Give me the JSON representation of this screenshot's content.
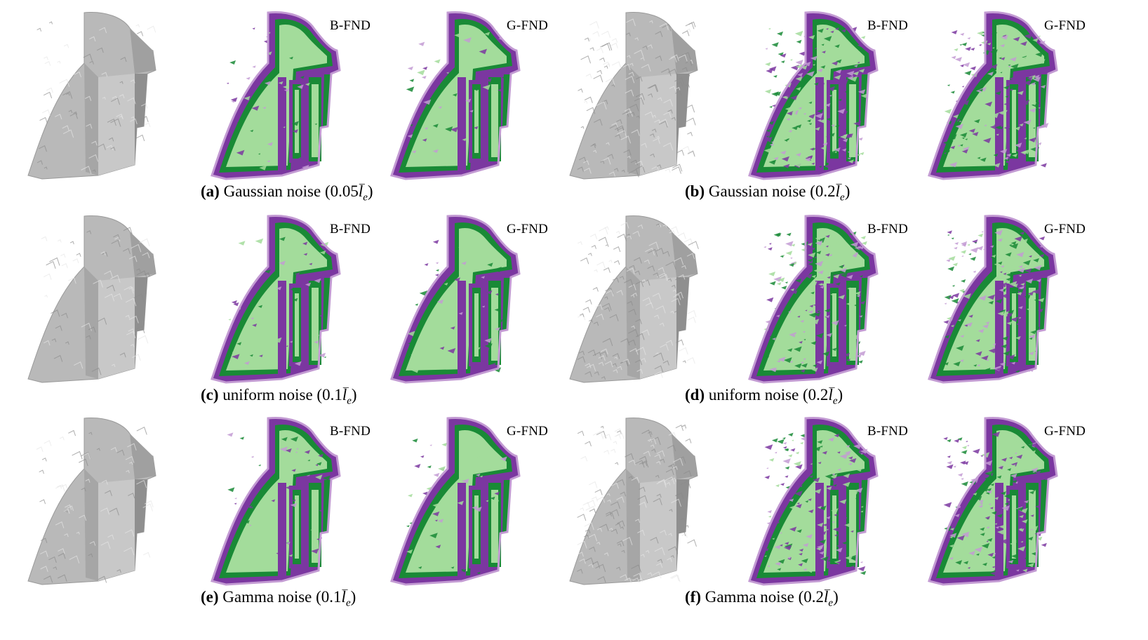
{
  "methods": {
    "b": "B-FND",
    "g": "G-FND"
  },
  "colors": {
    "gray": "#b9b9b9",
    "light_green": "#a3dc9b",
    "dark_green": "#198a36",
    "purple": "#7b37a0",
    "lilac": "#c39bd3"
  },
  "panels": [
    {
      "label": "(a)",
      "text": "Gaussian noise (0.05",
      "math": "l",
      "sub": "e",
      "close": ")"
    },
    {
      "label": "(b)",
      "text": "Gaussian noise (0.2",
      "math": "l",
      "sub": "e",
      "close": ")"
    },
    {
      "label": "(c)",
      "text": "uniform noise (0.1",
      "math": "l",
      "sub": "e",
      "close": ")"
    },
    {
      "label": "(d)",
      "text": "uniform noise (0.2",
      "math": "l",
      "sub": "e",
      "close": ")"
    },
    {
      "label": "(e)",
      "text": "Gamma noise (0.1",
      "math": "l",
      "sub": "e",
      "close": ")"
    },
    {
      "label": "(f)",
      "text": "Gamma noise (0.2",
      "math": "l",
      "sub": "e",
      "close": ")"
    }
  ]
}
